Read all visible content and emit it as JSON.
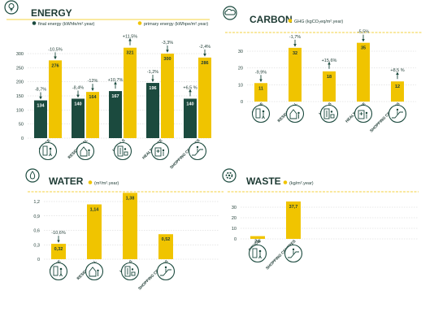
{
  "colors": {
    "final": "#1b4a3e",
    "primary": "#f0c400",
    "accent_line": "#f0c400",
    "grid": "#d0d0d0",
    "text": "#1d3a33",
    "icon": "#1b4a3e"
  },
  "chart_data": [
    {
      "id": "energy",
      "type": "bar",
      "title": "ENERGY",
      "title_icon": "lightbulb-icon",
      "legend": [
        {
          "label": "final energy (kWhfe/m².year)",
          "color": "#1b4a3e"
        },
        {
          "label": "primary energy (kWhpe/m².year)",
          "color": "#f0c400"
        }
      ],
      "categories": [
        "OFFICE",
        "RESIDENTIAL",
        "HOTELS",
        "HEALTHCARE",
        "SHOPPING CENTRES"
      ],
      "category_icons": [
        "office-worker-icon",
        "residential-house-icon",
        "hotel-luggage-icon",
        "healthcare-building-icon",
        "shopping-escalator-icon"
      ],
      "ylim": [
        0,
        300
      ],
      "yticks": [
        0,
        50,
        100,
        150,
        200,
        250,
        300
      ],
      "ytick_labels": [
        "0",
        "50",
        "100",
        "150",
        "200",
        "250",
        "300"
      ],
      "series": [
        {
          "name": "final energy",
          "values": [
            134,
            140,
            167,
            196,
            140
          ],
          "changes": [
            "-8,7%",
            "-8,4%",
            "+10,7%",
            "-1,2%",
            "+6,5 %"
          ]
        },
        {
          "name": "primary energy",
          "values": [
            276,
            164,
            321,
            300,
            286
          ],
          "changes": [
            "-10,5%",
            "-12%",
            "+11,5%",
            "-3,3%",
            "-2,4%"
          ]
        }
      ]
    },
    {
      "id": "carbon",
      "type": "bar",
      "title": "CARBON",
      "title_icon": "cloud-icon",
      "legend": [
        {
          "label": "GHG (kgCO₂eq/m².year)",
          "color": "#f0c400"
        }
      ],
      "categories": [
        "OFFICE",
        "RESIDENTIAL",
        "HOTELS",
        "HEALTHCARE",
        "SHOPPING CENTRES"
      ],
      "category_icons": [
        "office-worker-icon",
        "residential-house-icon",
        "hotel-luggage-icon",
        "healthcare-building-icon",
        "shopping-escalator-icon"
      ],
      "ylim": [
        0,
        30
      ],
      "yticks": [
        0,
        10,
        20,
        30
      ],
      "ytick_labels": [
        "0",
        "10",
        "20",
        "30"
      ],
      "series": [
        {
          "name": "GHG",
          "values": [
            11,
            32,
            18,
            35,
            12
          ],
          "changes": [
            "-9,9%",
            "-1,7%",
            "+15,6%",
            "-5,5%",
            "+8,5 %"
          ]
        }
      ]
    },
    {
      "id": "water",
      "type": "bar",
      "title": "WATER",
      "title_icon": "water-drop-icon",
      "legend": [
        {
          "label": "(m³/m².year)",
          "color": "#f0c400"
        }
      ],
      "categories": [
        "OFFICE",
        "RESIDENTIAL",
        "HOTELS",
        "SHOPPING CENTRES"
      ],
      "category_icons": [
        "office-worker-icon",
        "residential-house-icon",
        "hotel-luggage-icon",
        "shopping-escalator-icon"
      ],
      "ylim": [
        0,
        1.2
      ],
      "yticks": [
        0,
        0.3,
        0.6,
        0.9,
        1.2
      ],
      "ytick_labels": [
        "0",
        "0,3",
        "0,6",
        "0,9",
        "1,2"
      ],
      "series": [
        {
          "name": "water",
          "values": [
            0.32,
            1.14,
            1.38,
            0.52
          ],
          "value_labels": [
            "0,32",
            "1,14",
            "1,38",
            "0,52"
          ],
          "changes": [
            "-10,6%",
            "",
            "",
            ""
          ]
        }
      ]
    },
    {
      "id": "waste",
      "type": "bar",
      "title": "WASTE",
      "title_icon": "recycling-gear-icon",
      "legend": [
        {
          "label": "(kg/m².year)",
          "color": "#f0c400"
        }
      ],
      "categories": [
        "OFFICE",
        "SHOPPING CENTRES"
      ],
      "category_icons": [
        "office-worker-icon",
        "shopping-escalator-icon"
      ],
      "ylim": [
        0,
        30
      ],
      "yticks": [
        0,
        10,
        20,
        30
      ],
      "ytick_labels": [
        "0",
        "10",
        "20",
        "30"
      ],
      "series": [
        {
          "name": "waste",
          "values": [
            2.6,
            37.7
          ],
          "value_labels": [
            "2,6",
            "37,7"
          ],
          "changes": [
            "",
            ""
          ]
        }
      ]
    }
  ]
}
